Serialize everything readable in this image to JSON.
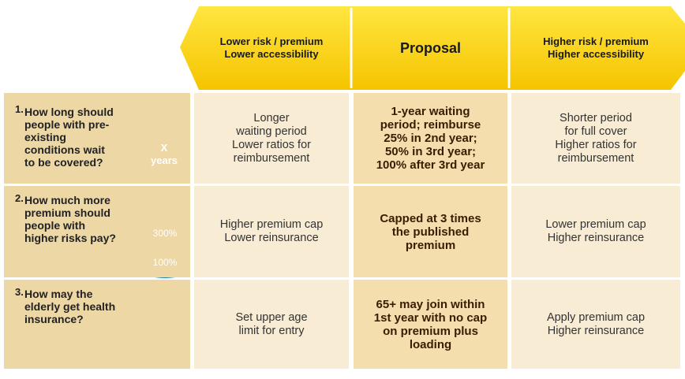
{
  "header": {
    "columns": [
      [
        "Lower risk / premium",
        "Lower accessibility"
      ],
      [
        "Proposal"
      ],
      [
        "Higher risk / premium",
        "Higher accessibility"
      ]
    ]
  },
  "rows": [
    {
      "number": "1.",
      "question": [
        "How long should",
        "people with pre-",
        "existing",
        "conditions wait",
        "to be covered?"
      ],
      "icon_text": [
        "X",
        "years"
      ],
      "cells": [
        [
          "Longer",
          "waiting period",
          "Lower ratios for",
          "reimbursement"
        ],
        [
          "1-year waiting",
          "period; reimburse",
          "25% in 2nd year;",
          "50% in 3rd year;",
          "100% after 3rd year"
        ],
        [
          "Shorter period",
          "for full cover",
          "Higher ratios for",
          "reimbursement"
        ]
      ]
    },
    {
      "number": "2.",
      "question": [
        "How much more",
        "premium should",
        "people with",
        "higher risks pay?"
      ],
      "icon_text": [
        "300%",
        "100%"
      ],
      "cells": [
        [
          "Higher premium cap",
          "Lower reinsurance"
        ],
        [
          "Capped at 3 times",
          "the published",
          "premium"
        ],
        [
          "Lower premium cap",
          "Higher reinsurance"
        ]
      ]
    },
    {
      "number": "3.",
      "question": [
        "How may the",
        "elderly get health",
        "insurance?"
      ],
      "icon_text": [],
      "cells": [
        [
          "Set upper age",
          "limit for entry"
        ],
        [
          "65+ may join within",
          "1st year with no cap",
          "on premium plus",
          "loading"
        ],
        [
          "Apply premium cap",
          "Higher reinsurance"
        ]
      ]
    }
  ]
}
